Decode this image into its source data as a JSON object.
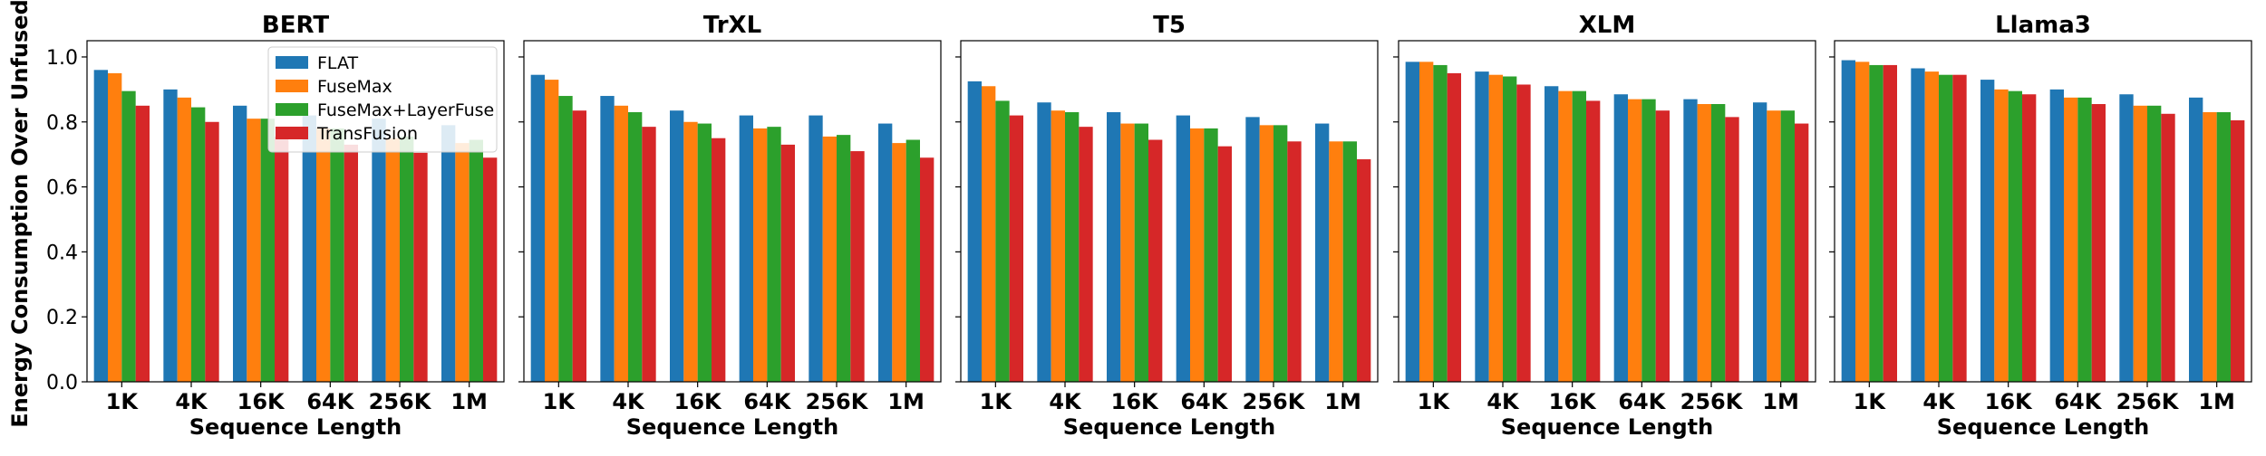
{
  "ylabel": "Energy Consumption Over Unfused",
  "xlabel": "Sequence Length",
  "legend": [
    {
      "name": "FLAT",
      "color": "#1f77b4"
    },
    {
      "name": "FuseMax",
      "color": "#ff7f0e"
    },
    {
      "name": "FuseMax+LayerFuse",
      "color": "#2ca02c"
    },
    {
      "name": "TransFusion",
      "color": "#d62728"
    }
  ],
  "yticks": [
    "0.0",
    "0.2",
    "0.4",
    "0.6",
    "0.8",
    "1.0"
  ],
  "chart_data": [
    {
      "type": "bar",
      "title": "BERT",
      "xlabel": "Sequence Length",
      "ylabel": "Energy Consumption Over Unfused",
      "ylim": [
        0,
        1.05
      ],
      "categories": [
        "1K",
        "4K",
        "16K",
        "64K",
        "256K",
        "1M"
      ],
      "legend": "top-right",
      "series": [
        {
          "name": "FLAT",
          "values": [
            0.96,
            0.9,
            0.85,
            0.82,
            0.81,
            0.79
          ]
        },
        {
          "name": "FuseMax",
          "values": [
            0.95,
            0.875,
            0.81,
            0.78,
            0.75,
            0.735
          ]
        },
        {
          "name": "FuseMax+LayerFuse",
          "values": [
            0.895,
            0.845,
            0.81,
            0.78,
            0.755,
            0.745
          ]
        },
        {
          "name": "TransFusion",
          "values": [
            0.85,
            0.8,
            0.755,
            0.73,
            0.705,
            0.69
          ]
        }
      ]
    },
    {
      "type": "bar",
      "title": "TrXL",
      "xlabel": "Sequence Length",
      "ylim": [
        0,
        1.05
      ],
      "categories": [
        "1K",
        "4K",
        "16K",
        "64K",
        "256K",
        "1M"
      ],
      "series": [
        {
          "name": "FLAT",
          "values": [
            0.945,
            0.88,
            0.835,
            0.82,
            0.82,
            0.795
          ]
        },
        {
          "name": "FuseMax",
          "values": [
            0.93,
            0.85,
            0.8,
            0.78,
            0.755,
            0.735
          ]
        },
        {
          "name": "FuseMax+LayerFuse",
          "values": [
            0.88,
            0.83,
            0.795,
            0.785,
            0.76,
            0.745
          ]
        },
        {
          "name": "TransFusion",
          "values": [
            0.835,
            0.785,
            0.75,
            0.73,
            0.71,
            0.69
          ]
        }
      ]
    },
    {
      "type": "bar",
      "title": "T5",
      "xlabel": "Sequence Length",
      "ylim": [
        0,
        1.05
      ],
      "categories": [
        "1K",
        "4K",
        "16K",
        "64K",
        "256K",
        "1M"
      ],
      "series": [
        {
          "name": "FLAT",
          "values": [
            0.925,
            0.86,
            0.83,
            0.82,
            0.815,
            0.795
          ]
        },
        {
          "name": "FuseMax",
          "values": [
            0.91,
            0.835,
            0.795,
            0.78,
            0.79,
            0.74
          ]
        },
        {
          "name": "FuseMax+LayerFuse",
          "values": [
            0.865,
            0.83,
            0.795,
            0.78,
            0.79,
            0.74
          ]
        },
        {
          "name": "TransFusion",
          "values": [
            0.82,
            0.785,
            0.745,
            0.725,
            0.74,
            0.685
          ]
        }
      ]
    },
    {
      "type": "bar",
      "title": "XLM",
      "xlabel": "Sequence Length",
      "ylim": [
        0,
        1.05
      ],
      "categories": [
        "1K",
        "4K",
        "16K",
        "64K",
        "256K",
        "1M"
      ],
      "series": [
        {
          "name": "FLAT",
          "values": [
            0.985,
            0.955,
            0.91,
            0.885,
            0.87,
            0.86
          ]
        },
        {
          "name": "FuseMax",
          "values": [
            0.985,
            0.945,
            0.895,
            0.87,
            0.855,
            0.835
          ]
        },
        {
          "name": "FuseMax+LayerFuse",
          "values": [
            0.975,
            0.94,
            0.895,
            0.87,
            0.855,
            0.835
          ]
        },
        {
          "name": "TransFusion",
          "values": [
            0.95,
            0.915,
            0.865,
            0.835,
            0.815,
            0.795
          ]
        }
      ]
    },
    {
      "type": "bar",
      "title": "Llama3",
      "xlabel": "Sequence Length",
      "ylim": [
        0,
        1.05
      ],
      "categories": [
        "1K",
        "4K",
        "16K",
        "64K",
        "256K",
        "1M"
      ],
      "series": [
        {
          "name": "FLAT",
          "values": [
            0.99,
            0.965,
            0.93,
            0.9,
            0.885,
            0.875
          ]
        },
        {
          "name": "FuseMax",
          "values": [
            0.985,
            0.955,
            0.9,
            0.875,
            0.85,
            0.83
          ]
        },
        {
          "name": "FuseMax+LayerFuse",
          "values": [
            0.975,
            0.945,
            0.895,
            0.875,
            0.85,
            0.83
          ]
        },
        {
          "name": "TransFusion",
          "values": [
            0.975,
            0.945,
            0.885,
            0.855,
            0.825,
            0.805
          ]
        }
      ]
    }
  ]
}
